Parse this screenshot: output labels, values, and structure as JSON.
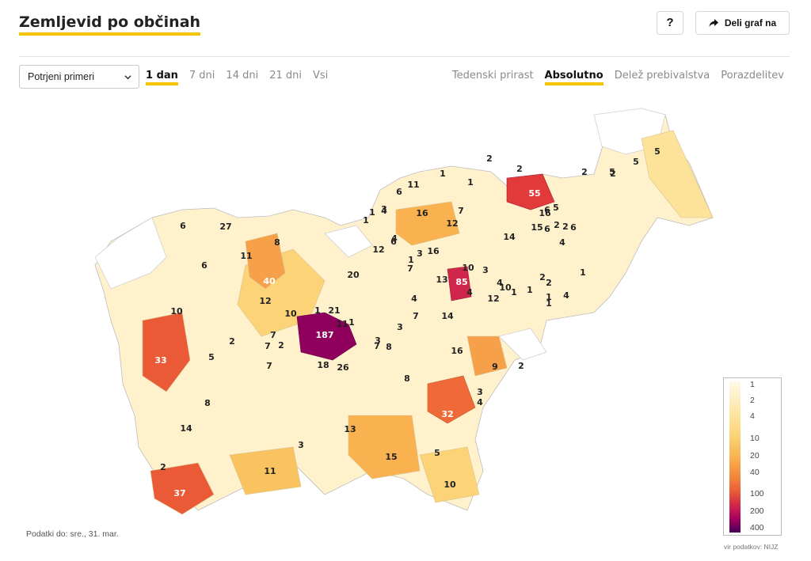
{
  "header": {
    "title": "Zemljevid po občinah",
    "help_label": "?",
    "share_label": "Deli graf na"
  },
  "controls": {
    "select_value": "Potrjeni primeri",
    "periods": [
      {
        "label": "1 dan",
        "active": true
      },
      {
        "label": "7 dni",
        "active": false
      },
      {
        "label": "14 dni",
        "active": false
      },
      {
        "label": "21 dni",
        "active": false
      },
      {
        "label": "Vsi",
        "active": false
      }
    ],
    "views": [
      {
        "label": "Tedenski prirast",
        "active": false
      },
      {
        "label": "Absolutno",
        "active": true
      },
      {
        "label": "Delež prebivalstva",
        "active": false
      },
      {
        "label": "Porazdelitev",
        "active": false
      }
    ]
  },
  "map": {
    "labels": [
      {
        "v": "187"
      },
      {
        "v": "85"
      },
      {
        "v": "55"
      },
      {
        "v": "40"
      },
      {
        "v": "37"
      },
      {
        "v": "33"
      },
      {
        "v": "32"
      },
      {
        "v": "27"
      },
      {
        "v": "26"
      },
      {
        "v": "21"
      },
      {
        "v": "20"
      },
      {
        "v": "18"
      },
      {
        "v": "16"
      },
      {
        "v": "16"
      },
      {
        "v": "16"
      },
      {
        "v": "16"
      },
      {
        "v": "15"
      },
      {
        "v": "15"
      },
      {
        "v": "14"
      },
      {
        "v": "14"
      },
      {
        "v": "14"
      },
      {
        "v": "13"
      },
      {
        "v": "13"
      },
      {
        "v": "12"
      },
      {
        "v": "12"
      },
      {
        "v": "12"
      },
      {
        "v": "12"
      },
      {
        "v": "11"
      },
      {
        "v": "11"
      },
      {
        "v": "11"
      },
      {
        "v": "11"
      },
      {
        "v": "10"
      },
      {
        "v": "10"
      },
      {
        "v": "10"
      },
      {
        "v": "10"
      },
      {
        "v": "10"
      },
      {
        "v": "9"
      },
      {
        "v": "8"
      },
      {
        "v": "8"
      },
      {
        "v": "8"
      },
      {
        "v": "8"
      },
      {
        "v": "7"
      },
      {
        "v": "7"
      },
      {
        "v": "7"
      },
      {
        "v": "7"
      },
      {
        "v": "7"
      },
      {
        "v": "7"
      },
      {
        "v": "7"
      },
      {
        "v": "6"
      },
      {
        "v": "6"
      },
      {
        "v": "6"
      },
      {
        "v": "6"
      },
      {
        "v": "6"
      },
      {
        "v": "6"
      },
      {
        "v": "6"
      },
      {
        "v": "5"
      },
      {
        "v": "5"
      },
      {
        "v": "5"
      },
      {
        "v": "5"
      },
      {
        "v": "5"
      },
      {
        "v": "5"
      },
      {
        "v": "4"
      },
      {
        "v": "4"
      },
      {
        "v": "4"
      },
      {
        "v": "4"
      },
      {
        "v": "4"
      },
      {
        "v": "4"
      },
      {
        "v": "4"
      },
      {
        "v": "4"
      },
      {
        "v": "3"
      },
      {
        "v": "3"
      },
      {
        "v": "3"
      },
      {
        "v": "3"
      },
      {
        "v": "3"
      },
      {
        "v": "3"
      },
      {
        "v": "3"
      },
      {
        "v": "2"
      },
      {
        "v": "2"
      },
      {
        "v": "2"
      },
      {
        "v": "2"
      },
      {
        "v": "2"
      },
      {
        "v": "2"
      },
      {
        "v": "2"
      },
      {
        "v": "2"
      },
      {
        "v": "2"
      },
      {
        "v": "2"
      },
      {
        "v": "2"
      },
      {
        "v": "2"
      },
      {
        "v": "1"
      },
      {
        "v": "1"
      },
      {
        "v": "1"
      },
      {
        "v": "1"
      },
      {
        "v": "1"
      },
      {
        "v": "1"
      },
      {
        "v": "1"
      },
      {
        "v": "1"
      },
      {
        "v": "1"
      },
      {
        "v": "1"
      },
      {
        "v": "1"
      },
      {
        "v": "1"
      }
    ]
  },
  "legend": {
    "ticks": [
      "1",
      "2",
      "4",
      "10",
      "20",
      "40",
      "100",
      "200",
      "400"
    ]
  },
  "footer": {
    "data_date": "Podatki do: sre., 31. mar.",
    "source": "vir podatkov: NIJZ"
  },
  "colors": {
    "accent": "#f5c400",
    "low": "#fff3d1",
    "mid": "#f9b24f",
    "high": "#ea5a36",
    "max": "#8e005c"
  }
}
